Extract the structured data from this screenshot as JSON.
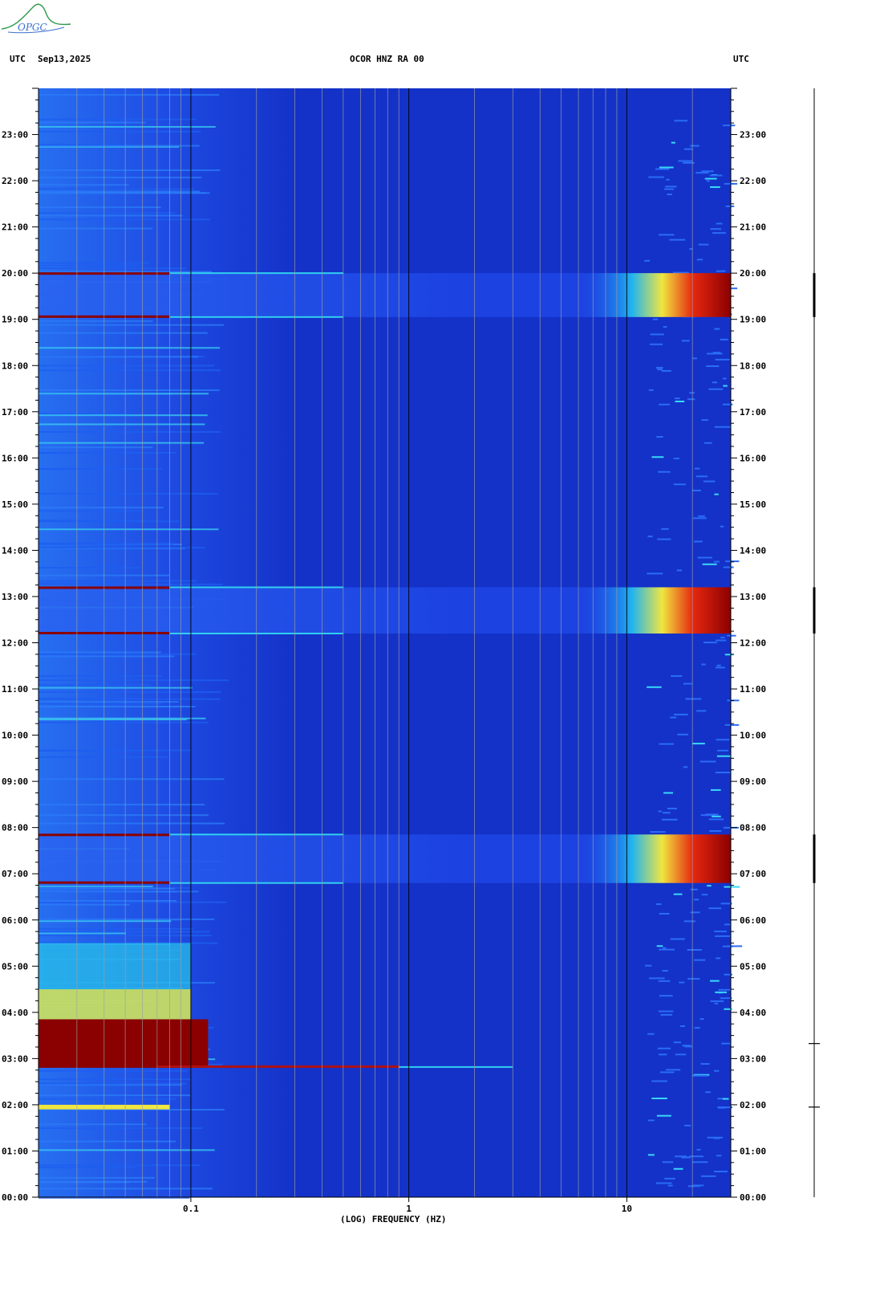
{
  "header": {
    "logo_text": "OPGC",
    "left_label": "UTC",
    "date": "Sep13,2025",
    "station": "OCOR HNZ RA 00",
    "right_label": "UTC"
  },
  "colors": {
    "background_blue": "#1432c8",
    "accent_dark_red": "#8b0000",
    "grid_gray": "#a0a0a0",
    "logo_green": "#2f9a4a",
    "logo_blue": "#3a6fd1"
  },
  "chart_data": {
    "type": "heatmap",
    "title": "OCOR HNZ RA 00",
    "xlabel": "(LOG) FREQUENCY (HZ)",
    "ylabel": "UTC",
    "x_scale": "log",
    "xlim": [
      0.02,
      30
    ],
    "ylim": [
      0,
      24
    ],
    "x_tick_labels": [
      "0.1",
      "1",
      "10"
    ],
    "x_ticks": [
      0.1,
      1,
      10
    ],
    "y_tick_labels": [
      "00:00",
      "01:00",
      "02:00",
      "03:00",
      "04:00",
      "05:00",
      "06:00",
      "07:00",
      "08:00",
      "09:00",
      "10:00",
      "11:00",
      "12:00",
      "13:00",
      "14:00",
      "15:00",
      "16:00",
      "17:00",
      "18:00",
      "19:00",
      "20:00",
      "21:00",
      "22:00",
      "23:00"
    ],
    "y_ticks": [
      0,
      1,
      2,
      3,
      4,
      5,
      6,
      7,
      8,
      9,
      10,
      11,
      12,
      13,
      14,
      15,
      16,
      17,
      18,
      19,
      20,
      21,
      22,
      23
    ],
    "high_energy_windows_utc": [
      {
        "start": 6.8,
        "end": 7.85,
        "peak_freq_hz": 20
      },
      {
        "start": 12.2,
        "end": 13.2,
        "peak_freq_hz": 20
      },
      {
        "start": 19.05,
        "end": 20.0,
        "peak_freq_hz": 20
      }
    ],
    "low_frequency_events_utc": [
      {
        "start": 2.8,
        "end": 3.85,
        "freq_max_hz": 0.12
      },
      {
        "start": 1.9,
        "end": 2.0,
        "freq_max_hz": 0.08
      }
    ],
    "grid": true
  }
}
